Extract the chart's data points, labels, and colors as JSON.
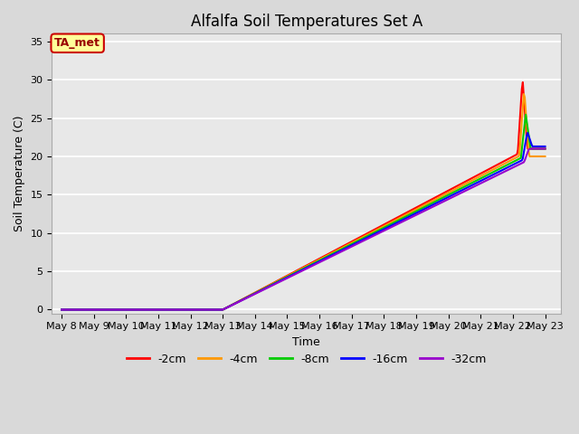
{
  "title": "Alfalfa Soil Temperatures Set A",
  "xlabel": "Time",
  "ylabel": "Soil Temperature (C)",
  "ylim": [
    -0.5,
    36
  ],
  "yticks": [
    0,
    5,
    10,
    15,
    20,
    25,
    30,
    35
  ],
  "x_labels": [
    "May 8",
    "May 9",
    "May 10",
    "May 11",
    "May 12",
    "May 13",
    "May 14",
    "May 15",
    "May 16",
    "May 17",
    "May 18",
    "May 19",
    "May 20",
    "May 21",
    "May 22",
    "May 23"
  ],
  "annotation_label": "TA_met",
  "annotation_bg": "#ffff99",
  "annotation_border": "#cc0000",
  "series_names": [
    "-2cm",
    "-4cm",
    "-8cm",
    "-16cm",
    "-32cm"
  ],
  "series_colors": [
    "#ff0000",
    "#ff9900",
    "#00cc00",
    "#0000ff",
    "#9900cc"
  ],
  "series_linewidth": 1.5,
  "fig_bg": "#d9d9d9",
  "plot_bg": "#e8e8e8",
  "grid_color": "#ffffff",
  "title_fontsize": 12,
  "label_fontsize": 9,
  "tick_fontsize": 8,
  "legend_fontsize": 9
}
